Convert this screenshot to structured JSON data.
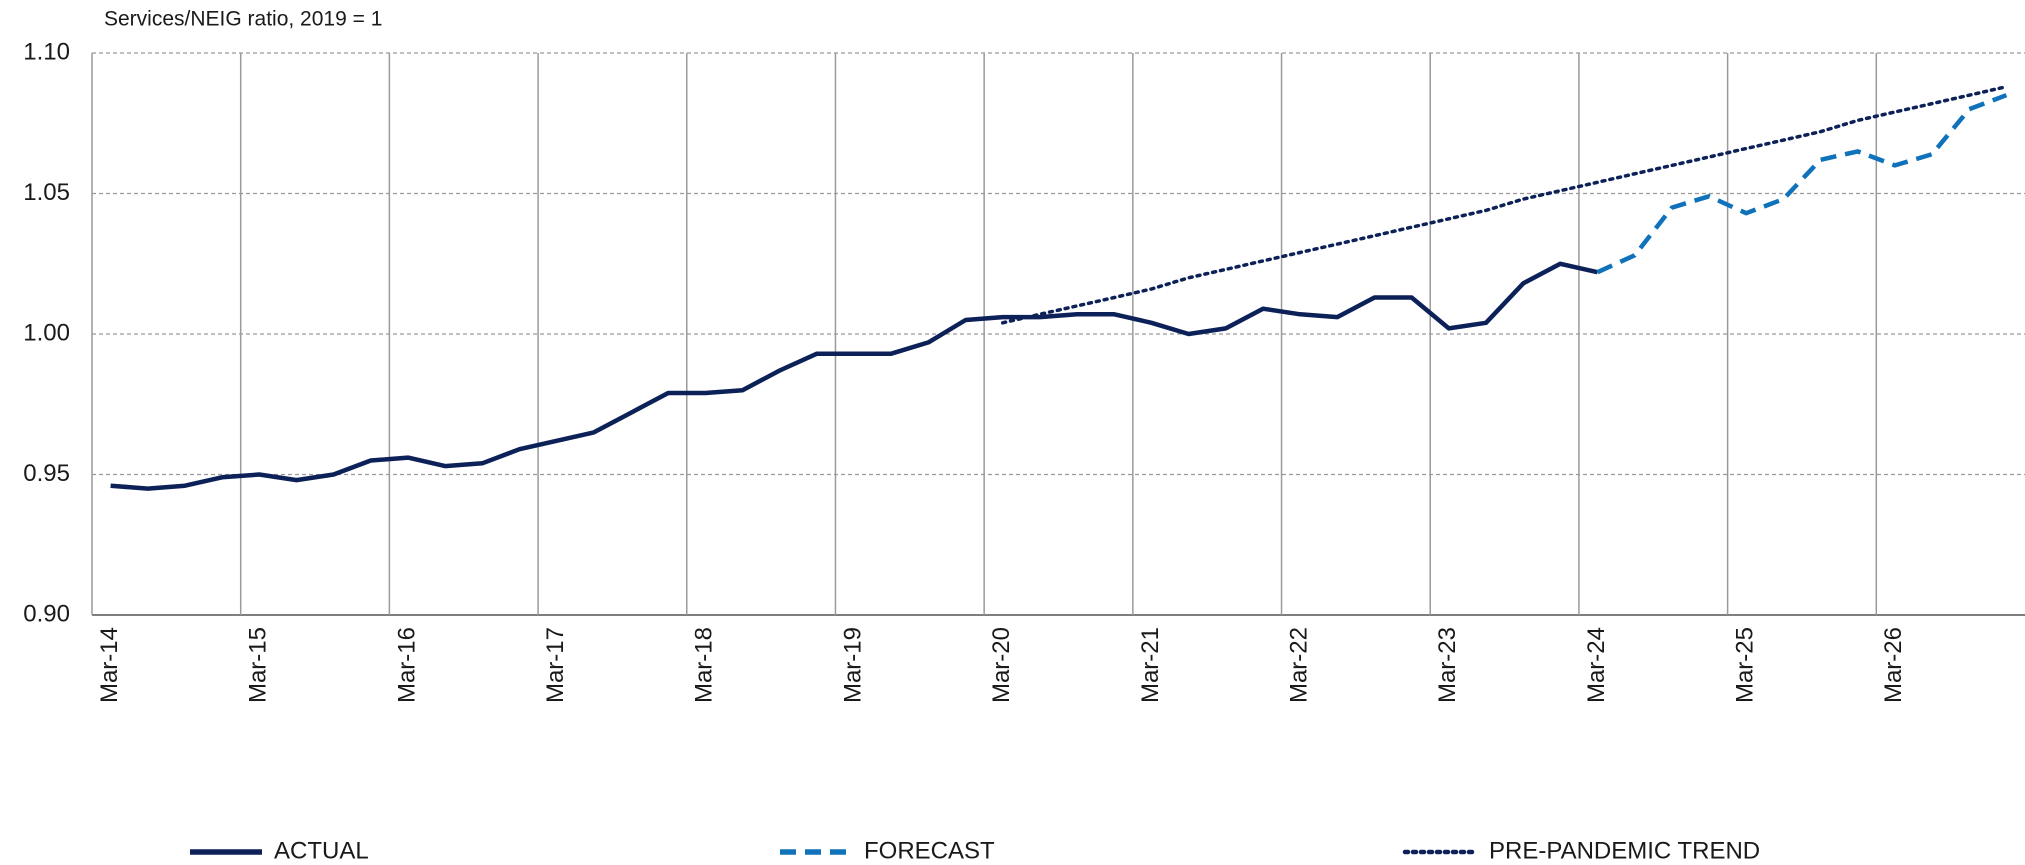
{
  "chart_data": {
    "type": "line",
    "y_axis_label": "Services/NEIG ratio, 2019 = 1",
    "categories": [
      "Mar-14",
      null,
      null,
      null,
      "Mar-15",
      null,
      null,
      null,
      "Mar-16",
      null,
      null,
      null,
      "Mar-17",
      null,
      null,
      null,
      "Mar-18",
      null,
      null,
      null,
      "Mar-19",
      null,
      null,
      null,
      "Mar-20",
      null,
      null,
      null,
      "Mar-21",
      null,
      null,
      null,
      "Mar-22",
      null,
      null,
      null,
      "Mar-23",
      null,
      null,
      null,
      "Mar-24",
      null,
      null,
      null,
      "Mar-25",
      null,
      null,
      null,
      "Mar-26",
      null,
      null,
      null
    ],
    "series": [
      {
        "name": "ACTUAL",
        "color": "#0d2159",
        "dash": "solid",
        "values": [
          0.946,
          0.945,
          0.946,
          0.949,
          0.95,
          0.948,
          0.95,
          0.955,
          0.956,
          0.953,
          0.954,
          0.959,
          0.962,
          0.965,
          0.972,
          0.979,
          0.979,
          0.98,
          0.987,
          0.993,
          0.993,
          0.993,
          0.997,
          1.005,
          1.006,
          1.006,
          1.007,
          1.007,
          1.004,
          1.0,
          1.002,
          1.009,
          1.007,
          1.006,
          1.013,
          1.013,
          1.002,
          1.004,
          1.018,
          1.025,
          1.022,
          null,
          null,
          null,
          null,
          null,
          null,
          null,
          null,
          null,
          null,
          null
        ]
      },
      {
        "name": "FORECAST",
        "color": "#0f72ba",
        "dash": "dashed",
        "values": [
          null,
          null,
          null,
          null,
          null,
          null,
          null,
          null,
          null,
          null,
          null,
          null,
          null,
          null,
          null,
          null,
          null,
          null,
          null,
          null,
          null,
          null,
          null,
          null,
          null,
          null,
          null,
          null,
          null,
          null,
          null,
          null,
          null,
          null,
          null,
          null,
          null,
          null,
          null,
          null,
          1.022,
          1.028,
          1.045,
          1.049,
          1.043,
          1.048,
          1.062,
          1.065,
          1.06,
          1.064,
          1.08,
          1.085
        ]
      },
      {
        "name": "PRE-PANDEMIC TREND",
        "color": "#0d2159",
        "dash": "dotted",
        "values": [
          null,
          null,
          null,
          null,
          null,
          null,
          null,
          null,
          null,
          null,
          null,
          null,
          null,
          null,
          null,
          null,
          null,
          null,
          null,
          null,
          null,
          null,
          null,
          null,
          1.004,
          1.007,
          1.01,
          1.013,
          1.016,
          1.02,
          1.023,
          1.026,
          1.029,
          1.032,
          1.035,
          1.038,
          1.041,
          1.044,
          1.048,
          1.051,
          1.054,
          1.057,
          1.06,
          1.063,
          1.066,
          1.069,
          1.072,
          1.076,
          1.079,
          1.082,
          1.085,
          1.088
        ]
      }
    ],
    "ylim": [
      0.9,
      1.1
    ],
    "yticks": [
      {
        "value": 0.9,
        "label": "0.90"
      },
      {
        "value": 0.95,
        "label": "0.95"
      },
      {
        "value": 1.0,
        "label": "1.00"
      },
      {
        "value": 1.05,
        "label": "1.05"
      },
      {
        "value": 1.1,
        "label": "1.10"
      }
    ],
    "grid": true,
    "legend": "bottom"
  }
}
